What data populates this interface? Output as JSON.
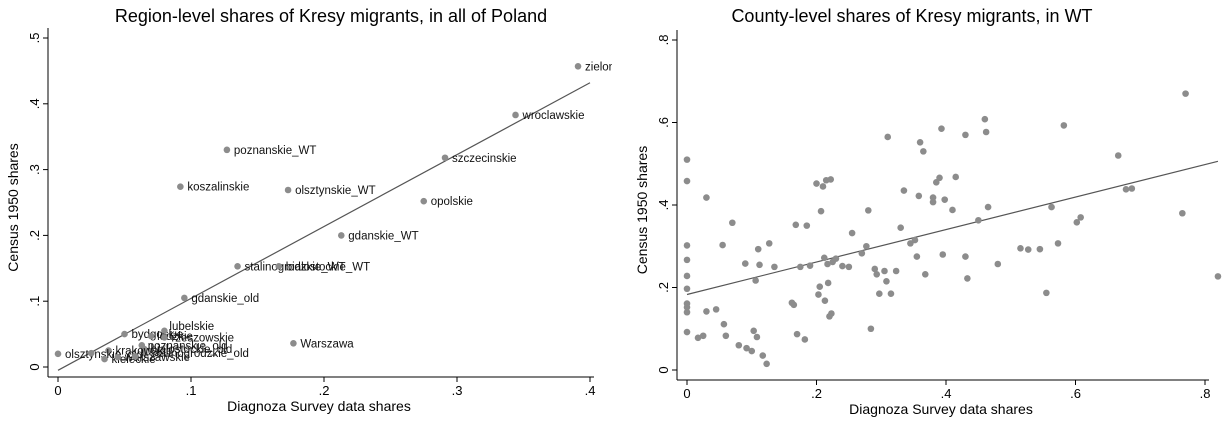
{
  "chart_data": [
    {
      "type": "scatter",
      "title": "Region-level shares of Kresy migrants, in all of Poland",
      "xlabel": "Diagnoza Survey data shares",
      "ylabel": "Census 1950 shares",
      "xlim": [
        0,
        0.4
      ],
      "ylim": [
        0,
        0.5
      ],
      "xticks": [
        "0",
        ".1",
        ".2",
        ".3",
        ".4"
      ],
      "yticks": [
        "0",
        ".1",
        ".2",
        ".3",
        ".4",
        ".5"
      ],
      "grid": false,
      "point_color": "#8c8c8c",
      "line_color": "#555555",
      "points": [
        {
          "label": "zielonogorskie",
          "x": 0.391,
          "y": 0.457
        },
        {
          "label": "wroclawskie",
          "x": 0.344,
          "y": 0.383
        },
        {
          "label": "poznanskie_WT",
          "x": 0.127,
          "y": 0.33
        },
        {
          "label": "szczecinskie",
          "x": 0.291,
          "y": 0.318
        },
        {
          "label": "koszalinskie",
          "x": 0.092,
          "y": 0.274
        },
        {
          "label": "olsztynskie_WT",
          "x": 0.173,
          "y": 0.269
        },
        {
          "label": "opolskie",
          "x": 0.275,
          "y": 0.252
        },
        {
          "label": "gdanskie_WT",
          "x": 0.213,
          "y": 0.2
        },
        {
          "label": "stalinogrodzkie_WT",
          "x": 0.135,
          "y": 0.153
        },
        {
          "label": "bialostockie_WT",
          "x": 0.166,
          "y": 0.153
        },
        {
          "label": "gdanskie_old",
          "x": 0.095,
          "y": 0.105
        },
        {
          "label": "bydgoskie",
          "x": 0.05,
          "y": 0.05
        },
        {
          "label": "lubelskie",
          "x": 0.08,
          "y": 0.055
        },
        {
          "label": "lodzkie",
          "x": 0.07,
          "y": 0.047
        },
        {
          "label": "rzeszowskie",
          "x": 0.08,
          "y": 0.045
        },
        {
          "label": "poznanskie_old",
          "x": 0.063,
          "y": 0.033
        },
        {
          "label": "bialostockie_old",
          "x": 0.065,
          "y": 0.027
        },
        {
          "label": "stalinogrodzkie_old",
          "x": 0.065,
          "y": 0.021
        },
        {
          "label": "Warszawa",
          "x": 0.177,
          "y": 0.036
        },
        {
          "label": "krakowskie",
          "x": 0.038,
          "y": 0.025
        },
        {
          "label": "olsztynskie_old",
          "x": 0.0,
          "y": 0.02
        },
        {
          "label": "kieleckie",
          "x": 0.035,
          "y": 0.012
        },
        {
          "label": "warszawskie",
          "x": 0.045,
          "y": 0.015
        },
        {
          "label": "",
          "x": 0.025,
          "y": 0.021
        },
        {
          "label": "",
          "x": 0.058,
          "y": 0.016
        }
      ],
      "fit": {
        "x": [
          0,
          0.4
        ],
        "y": [
          -0.005,
          0.432
        ]
      }
    },
    {
      "type": "scatter",
      "title": "County-level shares of Kresy migrants, in WT",
      "xlabel": "Diagnoza Survey data shares",
      "ylabel": "Census 1950 shares",
      "xlim": [
        0,
        0.8
      ],
      "ylim": [
        0,
        0.8
      ],
      "xticks": [
        "0",
        ".2",
        ".4",
        ".6",
        ".8"
      ],
      "yticks": [
        "0",
        ".2",
        ".4",
        ".6",
        ".8"
      ],
      "grid": false,
      "point_color": "#8c8c8c",
      "line_color": "#555555",
      "points": [
        {
          "x": 0.0,
          "y": 0.51
        },
        {
          "x": 0.0,
          "y": 0.458
        },
        {
          "x": 0.0,
          "y": 0.302
        },
        {
          "x": 0.0,
          "y": 0.267
        },
        {
          "x": 0.0,
          "y": 0.228
        },
        {
          "x": 0.0,
          "y": 0.197
        },
        {
          "x": 0.0,
          "y": 0.161
        },
        {
          "x": 0.0,
          "y": 0.152
        },
        {
          "x": 0.0,
          "y": 0.14
        },
        {
          "x": 0.0,
          "y": 0.092
        },
        {
          "x": 0.017,
          "y": 0.078
        },
        {
          "x": 0.025,
          "y": 0.083
        },
        {
          "x": 0.03,
          "y": 0.418
        },
        {
          "x": 0.03,
          "y": 0.142
        },
        {
          "x": 0.045,
          "y": 0.147
        },
        {
          "x": 0.055,
          "y": 0.303
        },
        {
          "x": 0.057,
          "y": 0.111
        },
        {
          "x": 0.06,
          "y": 0.083
        },
        {
          "x": 0.07,
          "y": 0.357
        },
        {
          "x": 0.08,
          "y": 0.06
        },
        {
          "x": 0.09,
          "y": 0.258
        },
        {
          "x": 0.092,
          "y": 0.053
        },
        {
          "x": 0.1,
          "y": 0.046
        },
        {
          "x": 0.103,
          "y": 0.095
        },
        {
          "x": 0.106,
          "y": 0.217
        },
        {
          "x": 0.108,
          "y": 0.08
        },
        {
          "x": 0.11,
          "y": 0.293
        },
        {
          "x": 0.112,
          "y": 0.255
        },
        {
          "x": 0.117,
          "y": 0.035
        },
        {
          "x": 0.123,
          "y": 0.015
        },
        {
          "x": 0.127,
          "y": 0.307
        },
        {
          "x": 0.135,
          "y": 0.25
        },
        {
          "x": 0.162,
          "y": 0.163
        },
        {
          "x": 0.165,
          "y": 0.158
        },
        {
          "x": 0.168,
          "y": 0.352
        },
        {
          "x": 0.17,
          "y": 0.087
        },
        {
          "x": 0.175,
          "y": 0.25
        },
        {
          "x": 0.182,
          "y": 0.074
        },
        {
          "x": 0.185,
          "y": 0.35
        },
        {
          "x": 0.19,
          "y": 0.253
        },
        {
          "x": 0.2,
          "y": 0.452
        },
        {
          "x": 0.203,
          "y": 0.183
        },
        {
          "x": 0.205,
          "y": 0.202
        },
        {
          "x": 0.207,
          "y": 0.385
        },
        {
          "x": 0.21,
          "y": 0.445
        },
        {
          "x": 0.212,
          "y": 0.272
        },
        {
          "x": 0.213,
          "y": 0.168
        },
        {
          "x": 0.215,
          "y": 0.46
        },
        {
          "x": 0.217,
          "y": 0.257
        },
        {
          "x": 0.218,
          "y": 0.211
        },
        {
          "x": 0.22,
          "y": 0.13
        },
        {
          "x": 0.222,
          "y": 0.462
        },
        {
          "x": 0.223,
          "y": 0.137
        },
        {
          "x": 0.225,
          "y": 0.262
        },
        {
          "x": 0.23,
          "y": 0.27
        },
        {
          "x": 0.24,
          "y": 0.252
        },
        {
          "x": 0.25,
          "y": 0.25
        },
        {
          "x": 0.255,
          "y": 0.332
        },
        {
          "x": 0.27,
          "y": 0.283
        },
        {
          "x": 0.277,
          "y": 0.3
        },
        {
          "x": 0.28,
          "y": 0.387
        },
        {
          "x": 0.284,
          "y": 0.1
        },
        {
          "x": 0.29,
          "y": 0.245
        },
        {
          "x": 0.293,
          "y": 0.232
        },
        {
          "x": 0.297,
          "y": 0.185
        },
        {
          "x": 0.305,
          "y": 0.24
        },
        {
          "x": 0.308,
          "y": 0.215
        },
        {
          "x": 0.31,
          "y": 0.565
        },
        {
          "x": 0.315,
          "y": 0.185
        },
        {
          "x": 0.323,
          "y": 0.24
        },
        {
          "x": 0.33,
          "y": 0.345
        },
        {
          "x": 0.335,
          "y": 0.435
        },
        {
          "x": 0.345,
          "y": 0.307
        },
        {
          "x": 0.352,
          "y": 0.315
        },
        {
          "x": 0.355,
          "y": 0.275
        },
        {
          "x": 0.358,
          "y": 0.422
        },
        {
          "x": 0.36,
          "y": 0.552
        },
        {
          "x": 0.365,
          "y": 0.53
        },
        {
          "x": 0.368,
          "y": 0.232
        },
        {
          "x": 0.38,
          "y": 0.407
        },
        {
          "x": 0.38,
          "y": 0.418
        },
        {
          "x": 0.385,
          "y": 0.455
        },
        {
          "x": 0.39,
          "y": 0.466
        },
        {
          "x": 0.393,
          "y": 0.585
        },
        {
          "x": 0.395,
          "y": 0.28
        },
        {
          "x": 0.398,
          "y": 0.413
        },
        {
          "x": 0.41,
          "y": 0.388
        },
        {
          "x": 0.415,
          "y": 0.468
        },
        {
          "x": 0.43,
          "y": 0.57
        },
        {
          "x": 0.43,
          "y": 0.275
        },
        {
          "x": 0.433,
          "y": 0.222
        },
        {
          "x": 0.45,
          "y": 0.363
        },
        {
          "x": 0.46,
          "y": 0.608
        },
        {
          "x": 0.462,
          "y": 0.577
        },
        {
          "x": 0.465,
          "y": 0.395
        },
        {
          "x": 0.48,
          "y": 0.257
        },
        {
          "x": 0.515,
          "y": 0.295
        },
        {
          "x": 0.527,
          "y": 0.292
        },
        {
          "x": 0.545,
          "y": 0.293
        },
        {
          "x": 0.555,
          "y": 0.187
        },
        {
          "x": 0.563,
          "y": 0.395
        },
        {
          "x": 0.573,
          "y": 0.307
        },
        {
          "x": 0.582,
          "y": 0.593
        },
        {
          "x": 0.602,
          "y": 0.358
        },
        {
          "x": 0.608,
          "y": 0.37
        },
        {
          "x": 0.666,
          "y": 0.52
        },
        {
          "x": 0.678,
          "y": 0.438
        },
        {
          "x": 0.687,
          "y": 0.44
        },
        {
          "x": 0.765,
          "y": 0.38
        },
        {
          "x": 0.77,
          "y": 0.67
        },
        {
          "x": 0.82,
          "y": 0.227
        }
      ],
      "fit": {
        "x": [
          0,
          0.82
        ],
        "y": [
          0.183,
          0.506
        ]
      }
    }
  ]
}
